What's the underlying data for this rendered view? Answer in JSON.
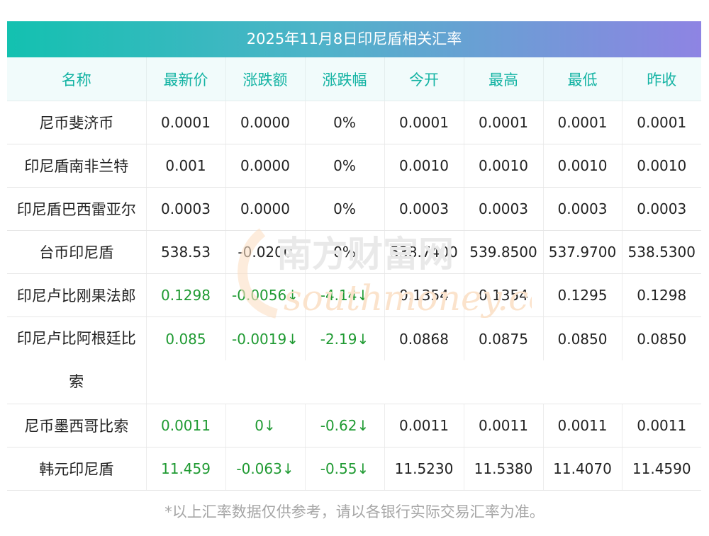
{
  "title": "2025年11月8日印尼盾相关汇率",
  "headers": [
    "名称",
    "最新价",
    "涨跌额",
    "涨跌幅",
    "今开",
    "最高",
    "最低",
    "昨收"
  ],
  "rows": [
    {
      "name": "尼币斐济币",
      "latest": "0.0001",
      "change": "0.0000",
      "pct": "0%",
      "open": "0.0001",
      "high": "0.0001",
      "low": "0.0001",
      "prev": "0.0001",
      "down": false
    },
    {
      "name": "印尼盾南非兰特",
      "latest": "0.001",
      "change": "0.0000",
      "pct": "0%",
      "open": "0.0010",
      "high": "0.0010",
      "low": "0.0010",
      "prev": "0.0010",
      "down": false
    },
    {
      "name": "印尼盾巴西雷亚尔",
      "latest": "0.0003",
      "change": "0.0000",
      "pct": "0%",
      "open": "0.0003",
      "high": "0.0003",
      "low": "0.0003",
      "prev": "0.0003",
      "down": false
    },
    {
      "name": "台币印尼盾",
      "latest": "538.53",
      "change": "-0.0200",
      "pct": "0%",
      "open": "538.7400",
      "high": "539.8500",
      "low": "537.9700",
      "prev": "538.5300",
      "down": false
    },
    {
      "name": "印尼卢比刚果法郎",
      "latest": "0.1298",
      "change": "-0.0056↓",
      "pct": "-4.14↓",
      "open": "0.1354",
      "high": "0.1354",
      "low": "0.1295",
      "prev": "0.1298",
      "down": true
    },
    {
      "name": "印尼卢比阿根廷比索",
      "latest": "0.085",
      "change": "-0.0019↓",
      "pct": "-2.19↓",
      "open": "0.0868",
      "high": "0.0875",
      "low": "0.0850",
      "prev": "0.0850",
      "down": true
    },
    {
      "name": "尼币墨西哥比索",
      "latest": "0.0011",
      "change": "0↓",
      "pct": "-0.62↓",
      "open": "0.0011",
      "high": "0.0011",
      "low": "0.0011",
      "prev": "0.0011",
      "down": true
    },
    {
      "name": "韩元印尼盾",
      "latest": "11.459",
      "change": "-0.063↓",
      "pct": "-0.55↓",
      "open": "11.5230",
      "high": "11.5380",
      "low": "11.4070",
      "prev": "11.4590",
      "down": true
    }
  ],
  "watermark": {
    "cn": "南方财富网",
    "en": "southmoney.com"
  },
  "footnote": "*以上汇率数据仅供参考，请以各银行实际交易汇率为准。"
}
